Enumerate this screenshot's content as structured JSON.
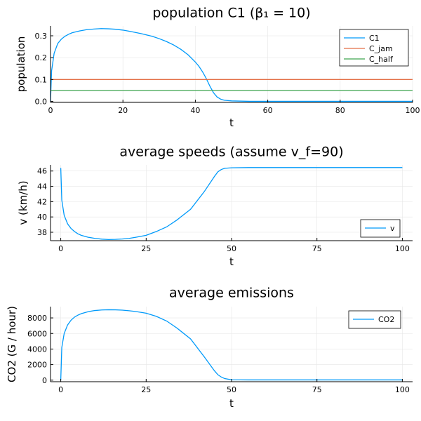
{
  "chart_data": [
    {
      "type": "line",
      "title": "population C1 (β₁ = 10)",
      "xlabel": "t",
      "ylabel": "population",
      "xlim": [
        0,
        100
      ],
      "ylim": [
        -0.005,
        0.345
      ],
      "xticks": [
        0,
        20,
        40,
        60,
        80,
        100
      ],
      "yticks": [
        0.0,
        0.1,
        0.2,
        0.3
      ],
      "ytick_labels": [
        "0.0",
        "0.1",
        "0.2",
        "0.3"
      ],
      "grid": true,
      "legend_position": "top-right",
      "series": [
        {
          "name": "C1",
          "color": "#009AFA",
          "x": [
            0,
            0.3,
            1,
            2,
            3,
            4,
            5,
            6,
            8,
            10,
            12,
            14,
            16,
            18,
            20,
            22,
            25,
            28,
            30,
            32,
            34,
            36,
            38,
            40,
            41,
            42,
            43,
            44,
            45,
            46,
            47,
            48,
            50,
            55,
            60,
            70,
            80,
            90,
            100
          ],
          "y": [
            0.0,
            0.14,
            0.22,
            0.265,
            0.285,
            0.298,
            0.307,
            0.314,
            0.322,
            0.328,
            0.331,
            0.333,
            0.332,
            0.33,
            0.326,
            0.32,
            0.31,
            0.298,
            0.287,
            0.274,
            0.258,
            0.238,
            0.213,
            0.18,
            0.16,
            0.135,
            0.105,
            0.07,
            0.04,
            0.02,
            0.01,
            0.005,
            0.002,
            0.0,
            0.0,
            0.0,
            0.0,
            0.0,
            0.0
          ]
        },
        {
          "name": "C_jam",
          "color": "#E36F47",
          "x": [
            0,
            100
          ],
          "y": [
            0.1,
            0.1
          ]
        },
        {
          "name": "C_half",
          "color": "#3EA44E",
          "x": [
            0,
            100
          ],
          "y": [
            0.05,
            0.05
          ]
        }
      ]
    },
    {
      "type": "line",
      "title": "average speeds (assume v_f=90)",
      "xlabel": "t",
      "ylabel": "v (km/h)",
      "xlim": [
        -3,
        103
      ],
      "ylim": [
        36.9,
        46.8
      ],
      "xticks": [
        0,
        25,
        50,
        75,
        100
      ],
      "yticks": [
        38,
        40,
        42,
        44,
        46
      ],
      "grid": true,
      "legend_position": "bottom-right",
      "series": [
        {
          "name": "v",
          "color": "#009AFA",
          "x": [
            0,
            0.3,
            1,
            2,
            3,
            4,
            5,
            6,
            8,
            10,
            12,
            14,
            16,
            18,
            20,
            22,
            25,
            28,
            31,
            34,
            38,
            42,
            45,
            46,
            47,
            48,
            50,
            55,
            60,
            70,
            80,
            90,
            100
          ],
          "y": [
            46.4,
            42.2,
            40.2,
            39.1,
            38.5,
            38.1,
            37.8,
            37.6,
            37.35,
            37.2,
            37.1,
            37.05,
            37.07,
            37.12,
            37.2,
            37.35,
            37.6,
            38.1,
            38.7,
            39.6,
            41.0,
            43.3,
            45.3,
            45.9,
            46.2,
            46.35,
            46.42,
            46.45,
            46.45,
            46.45,
            46.45,
            46.45,
            46.45
          ]
        }
      ]
    },
    {
      "type": "line",
      "title": "average emissions",
      "xlabel": "t",
      "ylabel": "CO2 (G / hour)",
      "xlim": [
        -3,
        103
      ],
      "ylim": [
        -200,
        9450
      ],
      "xticks": [
        0,
        25,
        50,
        75,
        100
      ],
      "yticks": [
        0,
        2000,
        4000,
        6000,
        8000
      ],
      "grid": true,
      "legend_position": "top-right",
      "series": [
        {
          "name": "CO2",
          "color": "#009AFA",
          "x": [
            0,
            0.3,
            1,
            2,
            3,
            4,
            5,
            6,
            8,
            10,
            12,
            14,
            16,
            18,
            20,
            22,
            25,
            28,
            31,
            34,
            38,
            42,
            45,
            46,
            47,
            48,
            50,
            55,
            60,
            70,
            80,
            90,
            100
          ],
          "y": [
            0,
            4200,
            6000,
            7100,
            7700,
            8100,
            8350,
            8550,
            8800,
            8950,
            9020,
            9050,
            9040,
            9000,
            8920,
            8820,
            8600,
            8200,
            7600,
            6700,
            5300,
            3000,
            1200,
            700,
            400,
            200,
            50,
            30,
            30,
            30,
            30,
            30,
            30
          ]
        }
      ]
    }
  ]
}
